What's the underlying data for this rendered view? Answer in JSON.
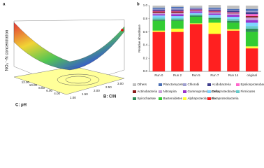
{
  "panel_a": {
    "label": "a",
    "z_label": "NO₃⁻-N concentration",
    "x_label": "C: pH",
    "y_label": "B: C/N",
    "x_ticks": [
      "12.00",
      "10.00",
      "8.00",
      "6.00",
      "4.00"
    ],
    "y_ticks": [
      "1.00",
      "1.50",
      "2.00",
      "2.50",
      "3.00"
    ]
  },
  "chart_data": {
    "type": "stacked_bar",
    "panel_label": "b",
    "ylabel": "Relative abundance",
    "categories": [
      "Run 0",
      "Run 2",
      "Run 5",
      "Run 7",
      "Run 14",
      "original"
    ],
    "ylim": [
      0,
      1
    ],
    "yticks": [
      {
        "value": 0,
        "label": "0.0"
      },
      {
        "value": 0.2,
        "label": "0.2"
      },
      {
        "value": 0.4,
        "label": "0.4"
      },
      {
        "value": 0.6,
        "label": "0.6"
      },
      {
        "value": 0.8,
        "label": "0.8"
      },
      {
        "value": 1,
        "label": "1.0"
      }
    ],
    "series": [
      {
        "name": "Betaproteobacteria",
        "color": "#ff2020",
        "values": [
          0.6,
          0.6,
          0.72,
          0.57,
          0.62,
          0.35
        ]
      },
      {
        "name": "Alphaproteobacteria",
        "color": "#ffff33",
        "values": [
          0.02,
          0.05,
          0.01,
          0.17,
          0.02,
          0.03
        ]
      },
      {
        "name": "Bacteroidetes",
        "color": "#33cc33",
        "values": [
          0.15,
          0.12,
          0.1,
          0.05,
          0.1,
          0.22
        ]
      },
      {
        "name": "Spirochaetae",
        "color": "#2e8b57",
        "values": [
          0.02,
          0.02,
          0.02,
          0.02,
          0.03,
          0.05
        ]
      },
      {
        "name": "Firmicutes",
        "color": "#66cccc",
        "values": [
          0.03,
          0.02,
          0.02,
          0.02,
          0.03,
          0.04
        ]
      },
      {
        "name": "Deltaproteobacteria",
        "color": "#7fd4ff",
        "values": [
          0.03,
          0.03,
          0.02,
          0.03,
          0.03,
          0.05
        ]
      },
      {
        "name": "Gammaproteobacteria",
        "color": "#9932cc",
        "values": [
          0.02,
          0.03,
          0.02,
          0.02,
          0.03,
          0.04
        ]
      },
      {
        "name": "Nitrospira",
        "color": "#c8a0d8",
        "values": [
          0.02,
          0.02,
          0.01,
          0.02,
          0.02,
          0.04
        ]
      },
      {
        "name": "Actinobacteria",
        "color": "#8b1a1a",
        "values": [
          0.02,
          0.02,
          0.01,
          0.01,
          0.01,
          0.02
        ]
      },
      {
        "name": "Epsilonproteobacteria",
        "color": "#ff66cc",
        "values": [
          0.01,
          0.01,
          0.01,
          0.01,
          0.01,
          0.03
        ]
      },
      {
        "name": "Acidobacteria",
        "color": "#3c3c8c",
        "values": [
          0.02,
          0.02,
          0.01,
          0.02,
          0.02,
          0.03
        ]
      },
      {
        "name": "Chlorobi",
        "color": "#a0a0d0",
        "values": [
          0.01,
          0.02,
          0.01,
          0.01,
          0.01,
          0.02
        ]
      },
      {
        "name": "Planctomycetes",
        "color": "#4a6fb5",
        "values": [
          0.02,
          0.02,
          0.01,
          0.02,
          0.02,
          0.03
        ]
      },
      {
        "name": "Others",
        "color": "#c0c0c0",
        "values": [
          0.03,
          0.02,
          0.03,
          0.04,
          0.05,
          0.05
        ]
      }
    ]
  }
}
